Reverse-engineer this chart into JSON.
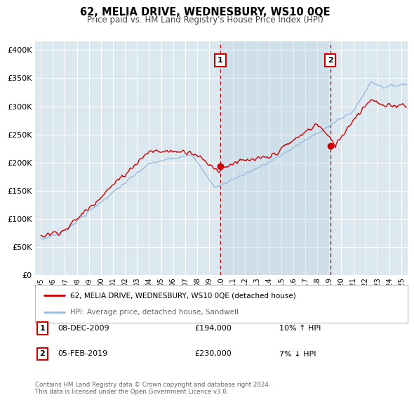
{
  "title": "62, MELIA DRIVE, WEDNESBURY, WS10 0QE",
  "subtitle": "Price paid vs. HM Land Registry's House Price Index (HPI)",
  "title_fontsize": 10.5,
  "subtitle_fontsize": 8.5,
  "ytick_vals": [
    0,
    50000,
    100000,
    150000,
    200000,
    250000,
    300000,
    350000,
    400000
  ],
  "ylim": [
    0,
    415000
  ],
  "xlim_start": 1994.5,
  "xlim_end": 2025.5,
  "sale1_x": 2009.92,
  "sale1_y": 194000,
  "sale2_x": 2019.08,
  "sale2_y": 230000,
  "sale1_label": "08-DEC-2009",
  "sale1_price": "£194,000",
  "sale1_hpi": "10% ↑ HPI",
  "sale2_label": "05-FEB-2019",
  "sale2_price": "£230,000",
  "sale2_hpi": "7% ↓ HPI",
  "legend_line1": "62, MELIA DRIVE, WEDNESBURY, WS10 0QE (detached house)",
  "legend_line2": "HPI: Average price, detached house, Sandwell",
  "footer": "Contains HM Land Registry data © Crown copyright and database right 2024.\nThis data is licensed under the Open Government Licence v3.0.",
  "line_color_red": "#cc0000",
  "line_color_blue": "#99bbdd",
  "background_color": "#ffffff",
  "plot_bg_color": "#dce8f0",
  "grid_color": "#ffffff",
  "vline_color": "#cc0000",
  "shade_color": "#c8dce8"
}
